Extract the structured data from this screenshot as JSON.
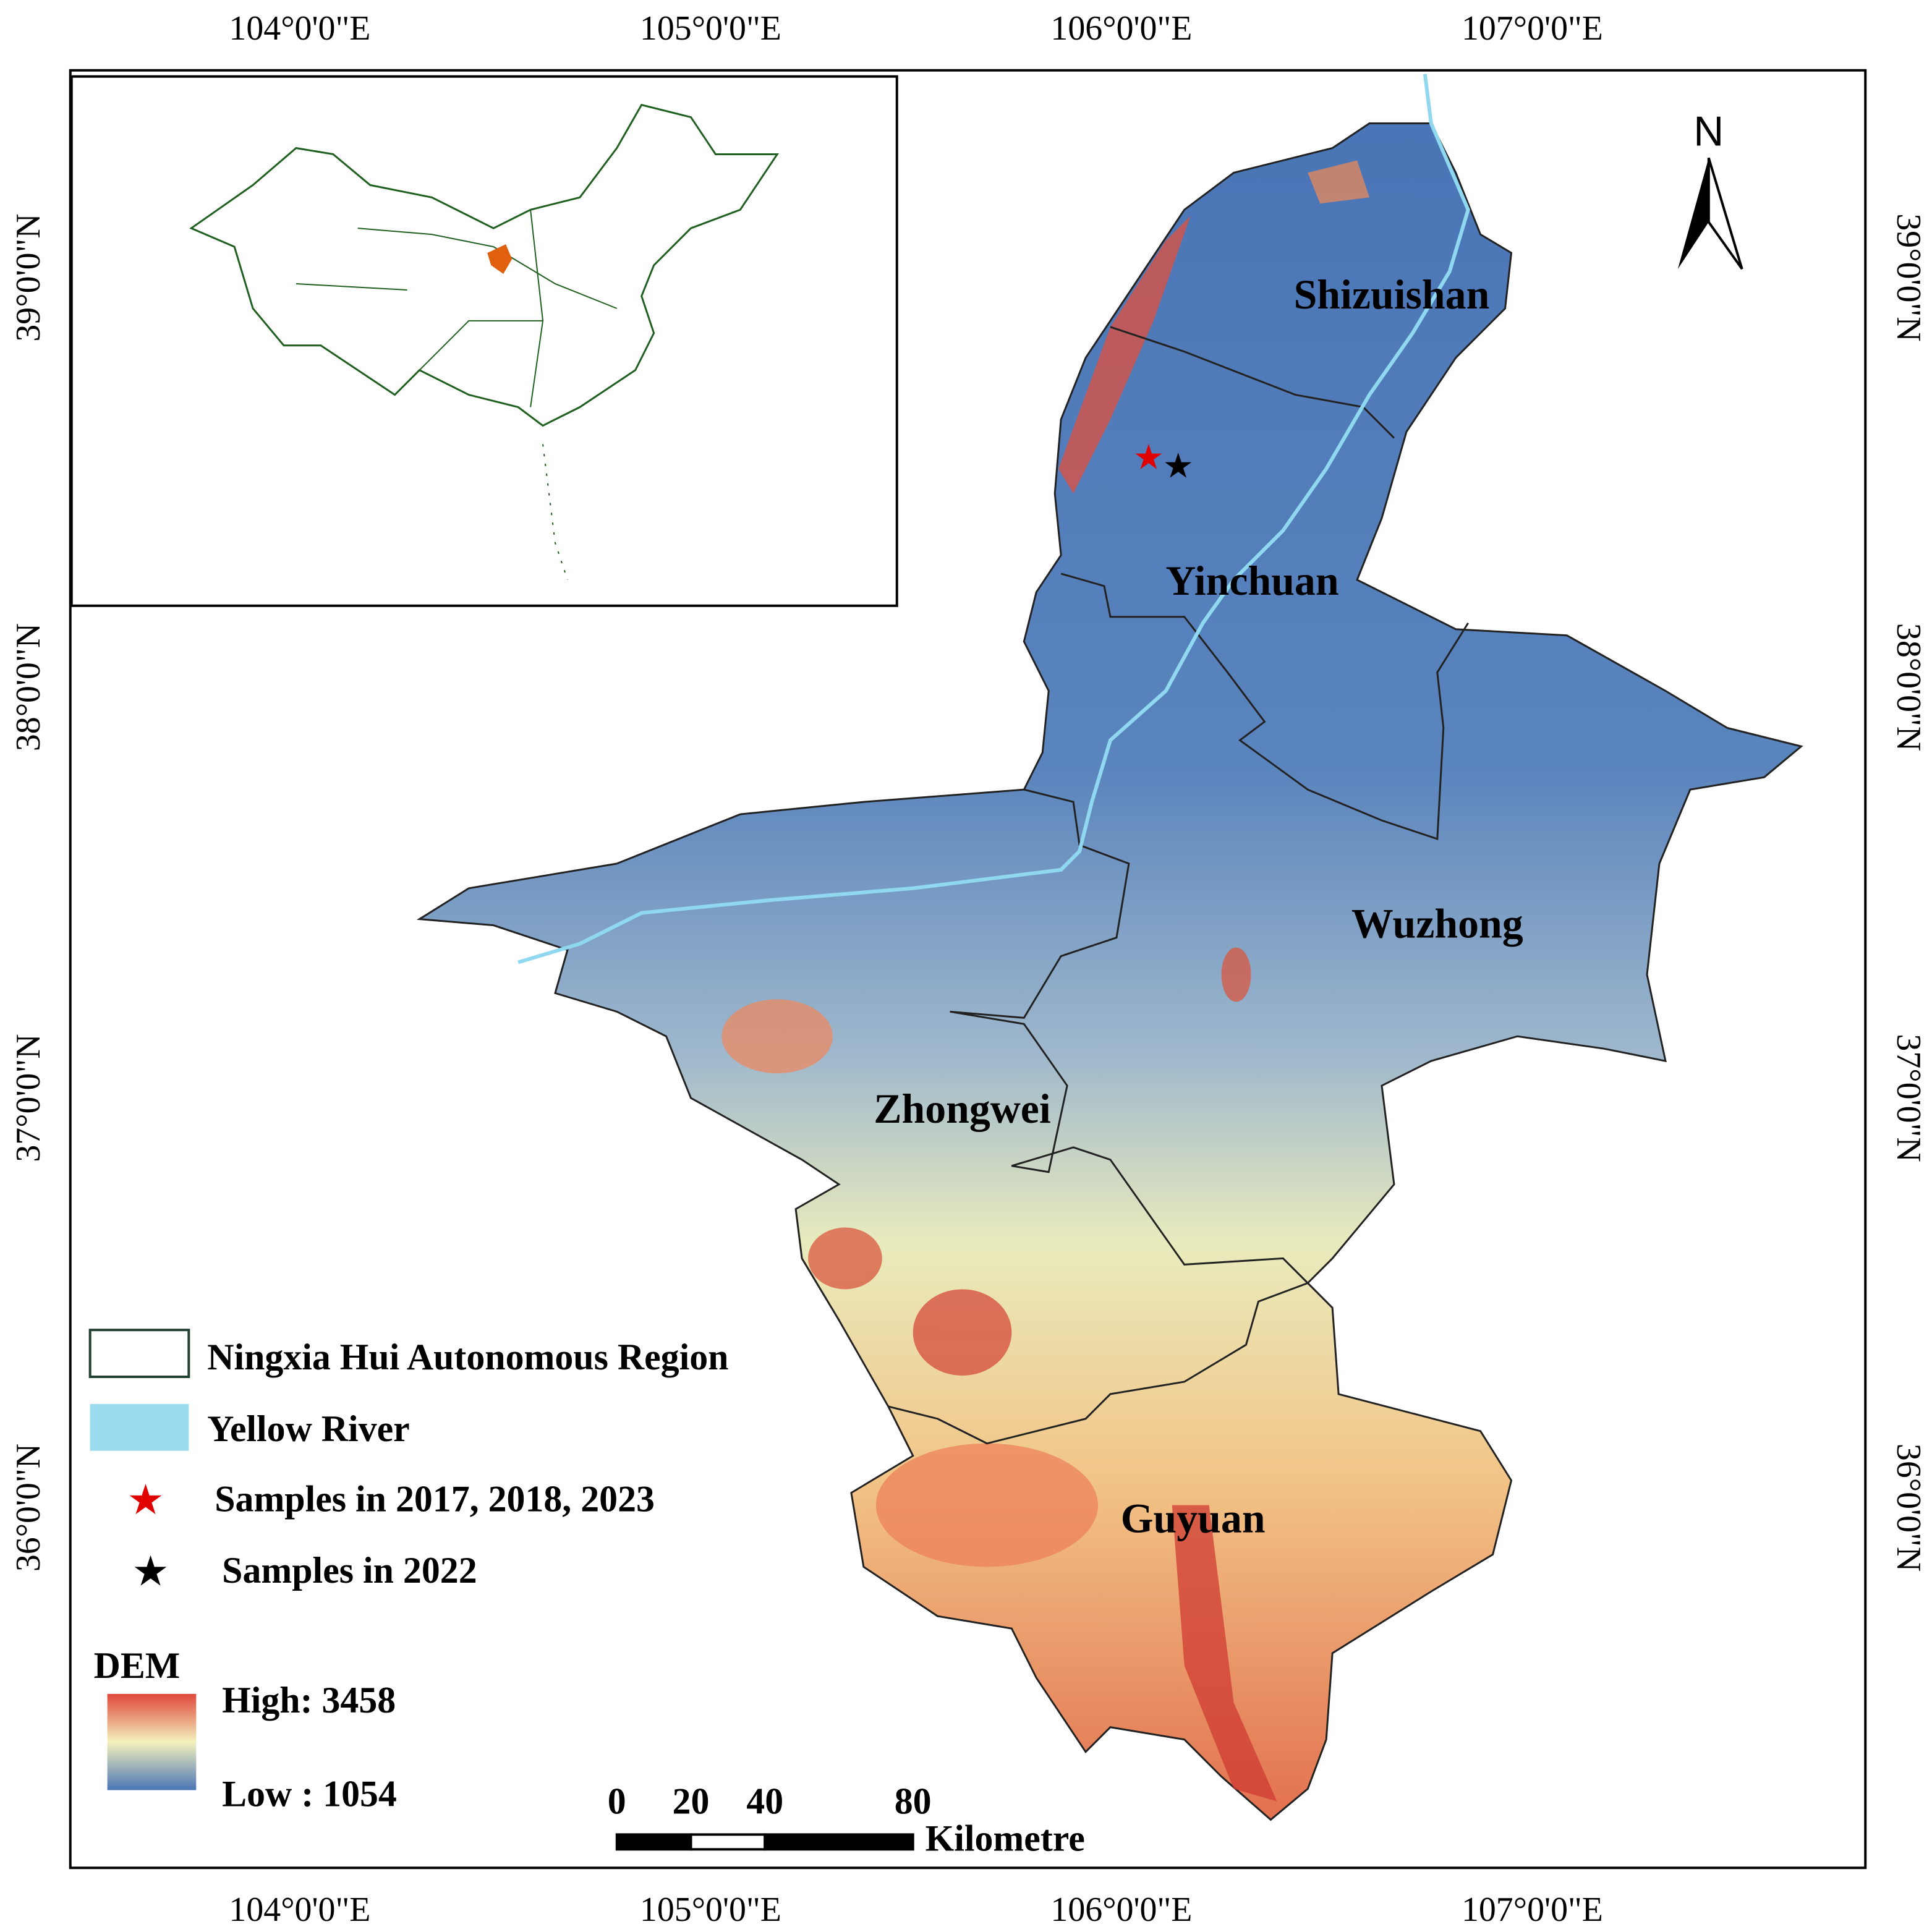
{
  "frame": {
    "top_labels": [
      "104°0'0\"E",
      "105°0'0\"E",
      "106°0'0\"E",
      "107°0'0\"E"
    ],
    "bottom_labels": [
      "104°0'0\"E",
      "105°0'0\"E",
      "106°0'0\"E",
      "107°0'0\"E"
    ],
    "left_labels": [
      "39°0'0\"N",
      "38°0'0\"N",
      "37°0'0\"N",
      "36°0'0\"N"
    ],
    "right_labels": [
      "39°0'0\"N",
      "38°0'0\"N",
      "37°0'0\"N",
      "36°0'0\"N"
    ]
  },
  "regions": [
    "Shizuishan",
    "Yinchuan",
    "Wuzhong",
    "Zhongwei",
    "Guyuan"
  ],
  "north": "N",
  "legend": {
    "items": [
      "Ningxia Hui Autonomous Region",
      "Yellow River",
      "Samples in 2017, 2018, 2023",
      "Samples in 2022"
    ],
    "dem_title": "DEM",
    "dem_high": "High: 3458",
    "dem_low": "Low : 1054"
  },
  "scale_bar": {
    "ticks": [
      0,
      20,
      40,
      80
    ],
    "unit": "Kilometre"
  }
}
